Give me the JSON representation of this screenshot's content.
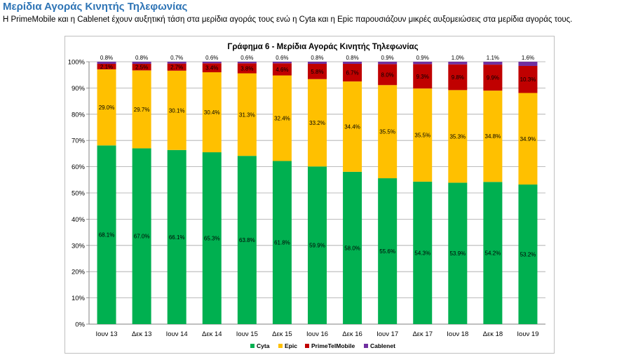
{
  "page": {
    "heading": "Μερίδια Αγοράς Κινητής Τηλεφωνίας",
    "intro": "Η PrimeMobile και η Cablenet έχουν αυξητική τάση στα μερίδια αγοράς τους ενώ η Cyta και η Epic παρουσιάζουν μικρές αυξομειώσεις στα μερίδια αγοράς τους."
  },
  "chart_data": {
    "type": "bar",
    "stacked": true,
    "title": "Γράφημα 6 - Μερίδια Αγοράς Κινητής Τηλεφωνίας",
    "categories": [
      "Ιουν 13",
      "Δεκ 13",
      "Ιουν 14",
      "Δεκ 14",
      "Ιουν 15",
      "Δεκ 15",
      "Ιουν 16",
      "Δεκ 16",
      "Ιουν 17",
      "Δεκ 17",
      "Ιουν 18",
      "Δεκ 18",
      "Ιουν 19"
    ],
    "ylim": [
      0,
      100
    ],
    "yticks": [
      "0%",
      "10%",
      "20%",
      "30%",
      "40%",
      "50%",
      "60%",
      "70%",
      "80%",
      "90%",
      "100%"
    ],
    "grid": true,
    "legend_position": "bottom",
    "series": [
      {
        "name": "Cyta",
        "color": "#00b050",
        "values": [
          68.1,
          67.0,
          66.1,
          65.3,
          63.8,
          61.8,
          59.9,
          58.0,
          55.6,
          54.3,
          53.9,
          54.2,
          53.2
        ],
        "labels": [
          "68.1%",
          "67.0%",
          "66.1%",
          "65.3%",
          "63.8%",
          "61.8%",
          "59.9%",
          "58.0%",
          "55.6%",
          "54.3%",
          "53.9%",
          "54.2%",
          "53.2%"
        ]
      },
      {
        "name": "Epic",
        "color": "#ffc000",
        "values": [
          29.0,
          29.7,
          30.1,
          30.4,
          31.3,
          32.4,
          33.2,
          34.4,
          35.5,
          35.5,
          35.3,
          34.8,
          34.9
        ],
        "labels": [
          "29.0%",
          "29.7%",
          "30.1%",
          "30.4%",
          "31.3%",
          "32.4%",
          "33.2%",
          "34.4%",
          "35.5%",
          "35.5%",
          "35.3%",
          "34.8%",
          "34.9%"
        ]
      },
      {
        "name": "PrimeTelMobile",
        "color": "#c00000",
        "values": [
          2.1,
          2.5,
          2.7,
          3.4,
          3.8,
          4.6,
          5.8,
          6.7,
          8.0,
          9.3,
          9.8,
          9.9,
          10.3
        ],
        "labels": [
          "2.1%",
          "2.5%",
          "2.7%",
          "3.4%",
          "3.8%",
          "4.6%",
          "5.8%",
          "6.7%",
          "8.0%",
          "9.3%",
          "9.8%",
          "9.9%",
          "10.3%"
        ]
      },
      {
        "name": "Cablenet",
        "color": "#7030a0",
        "values": [
          0.8,
          0.8,
          0.7,
          0.6,
          0.6,
          0.6,
          0.8,
          0.8,
          0.9,
          0.9,
          1.0,
          1.1,
          1.6
        ],
        "labels": [
          "0.8%",
          "0.8%",
          "0.7%",
          "0.6%",
          "0.6%",
          "0.6%",
          "0.8%",
          "0.8%",
          "0.9%",
          "0.9%",
          "1.0%",
          "1.1%",
          "1.6%"
        ]
      }
    ]
  }
}
